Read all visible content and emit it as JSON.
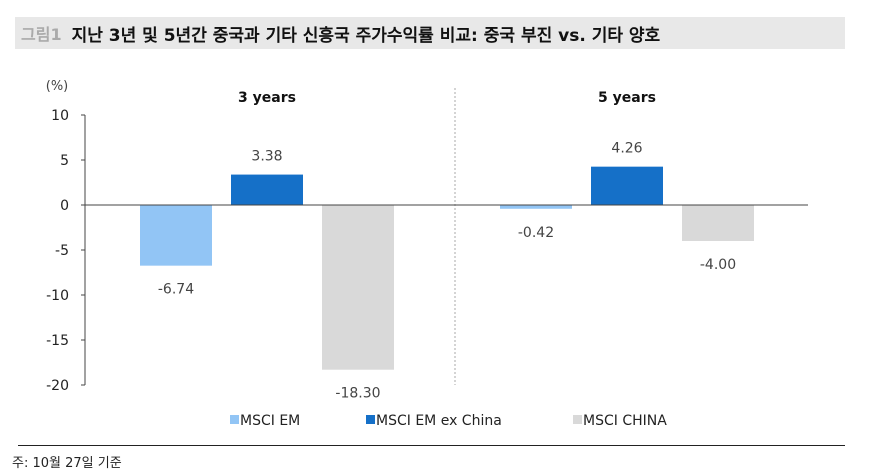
{
  "title": {
    "figure_label": "그림1",
    "text": "지난 3년 및 5년간 중국과 기타 신흥국 주가수익률 비교: 중국 부진 vs. 기타 양호"
  },
  "chart_data": {
    "type": "bar",
    "ylabel": "(%)",
    "ylim": [
      -20,
      10
    ],
    "yticks": [
      10,
      5,
      0,
      -5,
      -10,
      -15,
      -20
    ],
    "categories": [
      "3 years",
      "5 years"
    ],
    "series": [
      {
        "name": "MSCI EM",
        "values": [
          -6.74,
          -0.42
        ],
        "labels": [
          "-6.74",
          "-0.42"
        ],
        "color": "#92c5f5"
      },
      {
        "name": "MSCI EM ex China",
        "values": [
          3.38,
          4.26
        ],
        "labels": [
          "3.38",
          "4.26"
        ],
        "color": "#1570c8"
      },
      {
        "name": "MSCI CHINA",
        "values": [
          -18.3,
          -4.0
        ],
        "labels": [
          "-18.30",
          "-4.00"
        ],
        "color": "#d9d9d9"
      }
    ],
    "legend": "bottom",
    "grid": false
  },
  "footnote": "주: 10월 27일 기준"
}
